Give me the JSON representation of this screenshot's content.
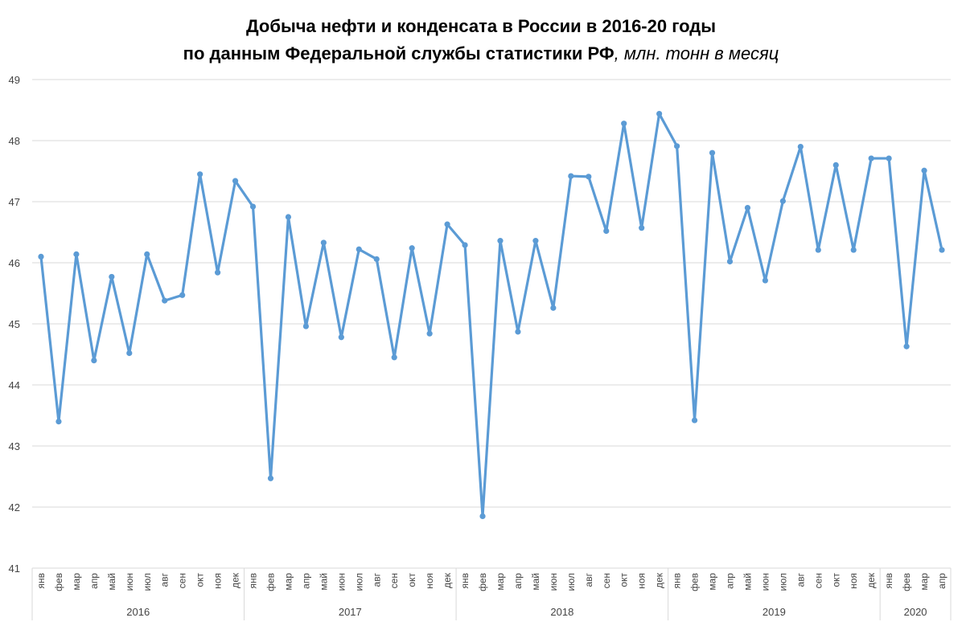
{
  "chart_data": {
    "type": "line",
    "title_line1": "Добыча нефти и конденсата в России в 2016-20 годы",
    "title_line2": "по данным Федеральной службы статистики РФ",
    "title_line2_italic": ", млн. тонн в месяц",
    "ylim": [
      41,
      49
    ],
    "yticks": [
      "41",
      "42",
      "43",
      "44",
      "45",
      "46",
      "47",
      "48",
      "49"
    ],
    "grid": true,
    "line_color": "#5b9bd5",
    "years": [
      {
        "label": "2016",
        "months": [
          "янв",
          "фев",
          "мар",
          "апр",
          "май",
          "июн",
          "июл",
          "авг",
          "сен",
          "окт",
          "ноя",
          "дек"
        ]
      },
      {
        "label": "2017",
        "months": [
          "янв",
          "фев",
          "мар",
          "апр",
          "май",
          "июн",
          "июл",
          "авг",
          "сен",
          "окт",
          "ноя",
          "дек"
        ]
      },
      {
        "label": "2018",
        "months": [
          "янв",
          "фев",
          "мар",
          "апр",
          "май",
          "июн",
          "июл",
          "авг",
          "сен",
          "окт",
          "ноя",
          "дек"
        ]
      },
      {
        "label": "2019",
        "months": [
          "янв",
          "фев",
          "мар",
          "апр",
          "май",
          "июн",
          "июл",
          "авг",
          "сен",
          "окт",
          "ноя",
          "дек"
        ]
      },
      {
        "label": "2020",
        "months": [
          "янв",
          "фев",
          "мар",
          "апр"
        ]
      }
    ],
    "series": [
      {
        "name": "Добыча нефти и конденсата",
        "values": [
          46.1,
          43.4,
          46.14,
          44.4,
          45.77,
          44.52,
          46.14,
          45.38,
          45.47,
          47.45,
          45.84,
          47.34,
          46.92,
          42.47,
          46.75,
          44.96,
          46.33,
          44.78,
          46.22,
          46.06,
          44.45,
          46.24,
          44.84,
          46.63,
          46.29,
          41.85,
          46.36,
          44.87,
          46.36,
          45.26,
          47.42,
          47.41,
          46.52,
          48.28,
          46.57,
          48.44,
          47.91,
          43.42,
          47.8,
          46.02,
          46.9,
          45.71,
          47.01,
          47.9,
          46.21,
          47.6,
          46.21,
          47.71,
          47.71,
          44.63,
          47.51,
          46.21
        ]
      }
    ]
  }
}
